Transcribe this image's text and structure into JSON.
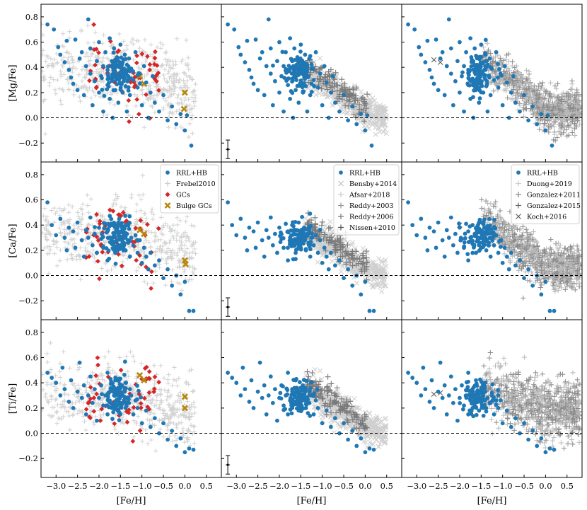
{
  "chart_data": {
    "type": "scatter",
    "layout": "3x3 grid of panels; rows share y-axis quantity, columns share x-axis",
    "xlabel": "[Fe/H]",
    "rows": [
      {
        "ylabel": "[Mg/Fe]",
        "ylim": [
          -0.35,
          0.9
        ],
        "yticks": [
          "0.8",
          "0.6",
          "0.4",
          "0.2",
          "0.0",
          "−0.2"
        ],
        "ytick_values": [
          0.8,
          0.6,
          0.4,
          0.2,
          0.0,
          -0.2
        ]
      },
      {
        "ylabel": "[Ca/Fe]",
        "ylim": [
          -0.35,
          0.9
        ],
        "yticks": [
          "0.8",
          "0.6",
          "0.4",
          "0.2",
          "0.0",
          "−0.2"
        ],
        "ytick_values": [
          0.8,
          0.6,
          0.4,
          0.2,
          0.0,
          -0.2
        ]
      },
      {
        "ylabel": "[Ti/Fe]",
        "ylim": [
          -0.35,
          0.9
        ],
        "yticks": [
          "0.8",
          "0.6",
          "0.4",
          "0.2",
          "0.0",
          "−0.2"
        ],
        "ytick_values": [
          0.8,
          0.6,
          0.4,
          0.2,
          0.0,
          -0.2
        ]
      }
    ],
    "xlim": [
      -3.35,
      0.85
    ],
    "xticks": [
      "−3.0",
      "−2.5",
      "−2.0",
      "−1.5",
      "−1.0",
      "−0.5",
      "0.0",
      "0.5"
    ],
    "xtick_values": [
      -3.0,
      -2.5,
      -2.0,
      -1.5,
      -1.0,
      -0.5,
      0.0,
      0.5
    ],
    "reference_line": {
      "y": 0.0,
      "style": "dashed"
    },
    "error_bar_example": {
      "x": -3.2,
      "y": -0.25,
      "yerr": 0.04,
      "xerr": 0.05,
      "panels": "middle column"
    },
    "legends": [
      {
        "column": 0,
        "placement": "upper right of middle row",
        "entries": [
          {
            "label": "RRL+HB",
            "marker": "circle",
            "color": "#1f77b4"
          },
          {
            "label": "Frebel2010",
            "marker": "plus",
            "color": "#cccccc"
          },
          {
            "label": "GCs",
            "marker": "diamond",
            "color": "#d62728"
          },
          {
            "label": "Bulge GCs",
            "marker": "x",
            "color": "#b8860b"
          }
        ]
      },
      {
        "column": 1,
        "placement": "upper right of middle row",
        "entries": [
          {
            "label": "RRL+HB",
            "marker": "circle",
            "color": "#1f77b4"
          },
          {
            "label": "Bensby+2014",
            "marker": "x",
            "color": "#bbbbbb"
          },
          {
            "label": "Afsar+2018",
            "marker": "plus",
            "color": "#cccccc"
          },
          {
            "label": "Reddy+2003",
            "marker": "plus",
            "color": "#999999"
          },
          {
            "label": "Reddy+2006",
            "marker": "plus",
            "color": "#777777"
          },
          {
            "label": "Nissen+2010",
            "marker": "plus",
            "color": "#555555"
          }
        ]
      },
      {
        "column": 2,
        "placement": "upper right of middle row",
        "entries": [
          {
            "label": "RRL+HB",
            "marker": "circle",
            "color": "#1f77b4"
          },
          {
            "label": "Duong+2019",
            "marker": "plus",
            "color": "#cccccc"
          },
          {
            "label": "Gonzalez+2011",
            "marker": "plus",
            "color": "#888888"
          },
          {
            "label": "Gonzalez+2015",
            "marker": "plus",
            "color": "#666666"
          },
          {
            "label": "Koch+2016",
            "marker": "x",
            "color": "#555555"
          }
        ]
      }
    ],
    "series_points": {
      "rrl_hb": {
        "color": "#1f77b4",
        "mg": [
          [
            -3.2,
            0.74
          ],
          [
            -3.05,
            0.7
          ],
          [
            -2.95,
            0.56
          ],
          [
            -2.9,
            0.5
          ],
          [
            -2.8,
            0.44
          ],
          [
            -2.75,
            0.61
          ],
          [
            -2.7,
            0.38
          ],
          [
            -2.65,
            0.32
          ],
          [
            -2.6,
            0.27
          ],
          [
            -2.55,
            0.62
          ],
          [
            -2.5,
            0.22
          ],
          [
            -2.45,
            0.47
          ],
          [
            -2.4,
            0.52
          ],
          [
            -2.35,
            0.18
          ],
          [
            -2.3,
            0.41
          ],
          [
            -2.25,
            0.78
          ],
          [
            -2.2,
            0.55
          ],
          [
            -2.2,
            0.35
          ],
          [
            -2.15,
            0.1
          ],
          [
            -2.1,
            0.29
          ],
          [
            -2.05,
            0.45
          ],
          [
            -2.0,
            0.6
          ],
          [
            -2.0,
            0.2
          ],
          [
            -1.95,
            0.33
          ],
          [
            -1.9,
            0.41
          ],
          [
            -1.9,
            0.05
          ],
          [
            -1.85,
            0.52
          ],
          [
            -1.8,
            0.26
          ],
          [
            -1.8,
            0.38
          ],
          [
            -1.75,
            0.63
          ],
          [
            -1.75,
            0.15
          ],
          [
            -1.7,
            0.45
          ],
          [
            -1.7,
            0.31
          ],
          [
            -1.68,
            0.0
          ],
          [
            -1.65,
            0.36
          ],
          [
            -1.65,
            0.55
          ],
          [
            -1.62,
            0.22
          ],
          [
            -1.6,
            0.42
          ],
          [
            -1.6,
            0.3
          ],
          [
            -1.58,
            0.48
          ],
          [
            -1.55,
            0.34
          ],
          [
            -1.55,
            0.12
          ],
          [
            -1.52,
            0.4
          ],
          [
            -1.5,
            0.58
          ],
          [
            -1.5,
            0.27
          ],
          [
            -1.48,
            0.36
          ],
          [
            -1.45,
            0.44
          ],
          [
            -1.45,
            0.2
          ],
          [
            -1.42,
            0.32
          ],
          [
            -1.4,
            0.5
          ],
          [
            -1.4,
            0.38
          ],
          [
            -1.38,
            0.25
          ],
          [
            -1.35,
            0.42
          ],
          [
            -1.35,
            0.05
          ],
          [
            -1.32,
            0.33
          ],
          [
            -1.3,
            0.47
          ],
          [
            -1.28,
            0.18
          ],
          [
            -1.25,
            0.39
          ],
          [
            -1.2,
            0.3
          ],
          [
            -1.15,
            0.52
          ],
          [
            -1.1,
            0.24
          ],
          [
            -1.05,
            0.35
          ],
          [
            -1.0,
            0.1
          ],
          [
            -0.95,
            0.41
          ],
          [
            -0.9,
            0.28
          ],
          [
            -0.85,
            0.0
          ],
          [
            -0.8,
            0.2
          ],
          [
            -0.75,
            0.33
          ],
          [
            -0.7,
            0.12
          ],
          [
            -0.6,
            0.05
          ],
          [
            -0.5,
            0.18
          ],
          [
            -0.4,
            -0.02
          ],
          [
            -0.3,
            0.09
          ],
          [
            -0.2,
            -0.05
          ],
          [
            -0.1,
            0.03
          ],
          [
            0.0,
            -0.1
          ],
          [
            0.05,
            0.02
          ],
          [
            0.15,
            -0.22
          ]
        ],
        "ca": [
          [
            -3.2,
            0.58
          ],
          [
            -3.1,
            0.4
          ],
          [
            -3.0,
            0.32
          ],
          [
            -2.9,
            0.45
          ],
          [
            -2.8,
            0.3
          ],
          [
            -2.75,
            0.2
          ],
          [
            -2.7,
            0.38
          ],
          [
            -2.6,
            0.35
          ],
          [
            -2.55,
            0.22
          ],
          [
            -2.5,
            0.42
          ],
          [
            -2.4,
            0.28
          ],
          [
            -2.35,
            0.15
          ],
          [
            -2.3,
            0.36
          ],
          [
            -2.25,
            0.3
          ],
          [
            -2.2,
            0.46
          ],
          [
            -2.15,
            0.24
          ],
          [
            -2.1,
            0.33
          ],
          [
            -2.05,
            0.18
          ],
          [
            -2.0,
            0.38
          ],
          [
            -1.95,
            0.29
          ],
          [
            -1.9,
            0.22
          ],
          [
            -1.85,
            0.41
          ],
          [
            -1.8,
            0.35
          ],
          [
            -1.8,
            0.12
          ],
          [
            -1.75,
            0.3
          ],
          [
            -1.7,
            0.4
          ],
          [
            -1.7,
            0.25
          ],
          [
            -1.65,
            0.33
          ],
          [
            -1.62,
            0.18
          ],
          [
            -1.6,
            0.36
          ],
          [
            -1.58,
            0.28
          ],
          [
            -1.55,
            0.42
          ],
          [
            -1.52,
            0.3
          ],
          [
            -1.5,
            0.22
          ],
          [
            -1.48,
            0.35
          ],
          [
            -1.45,
            0.27
          ],
          [
            -1.42,
            0.38
          ],
          [
            -1.4,
            0.3
          ],
          [
            -1.38,
            0.2
          ],
          [
            -1.35,
            0.33
          ],
          [
            -1.32,
            0.26
          ],
          [
            -1.3,
            0.37
          ],
          [
            -1.28,
            0.15
          ],
          [
            -1.25,
            0.3
          ],
          [
            -1.2,
            0.24
          ],
          [
            -1.15,
            0.32
          ],
          [
            -1.1,
            0.18
          ],
          [
            -1.05,
            0.28
          ],
          [
            -1.0,
            0.1
          ],
          [
            -0.95,
            0.22
          ],
          [
            -0.9,
            0.15
          ],
          [
            -0.85,
            0.05
          ],
          [
            -0.8,
            0.18
          ],
          [
            -0.7,
            0.08
          ],
          [
            -0.6,
            0.12
          ],
          [
            -0.5,
            -0.02
          ],
          [
            -0.4,
            0.05
          ],
          [
            -0.3,
            -0.08
          ],
          [
            -0.2,
            0.0
          ],
          [
            -0.1,
            -0.15
          ],
          [
            0.0,
            -0.05
          ],
          [
            0.1,
            -0.28
          ],
          [
            0.2,
            -0.28
          ]
        ],
        "ti": [
          [
            -3.2,
            0.48
          ],
          [
            -3.1,
            0.44
          ],
          [
            -3.0,
            0.4
          ],
          [
            -2.9,
            0.3
          ],
          [
            -2.85,
            0.52
          ],
          [
            -2.8,
            0.35
          ],
          [
            -2.7,
            0.25
          ],
          [
            -2.65,
            0.42
          ],
          [
            -2.6,
            0.2
          ],
          [
            -2.5,
            0.33
          ],
          [
            -2.45,
            0.56
          ],
          [
            -2.4,
            0.28
          ],
          [
            -2.35,
            0.38
          ],
          [
            -2.3,
            0.15
          ],
          [
            -2.25,
            0.3
          ],
          [
            -2.2,
            0.45
          ],
          [
            -2.15,
            0.24
          ],
          [
            -2.1,
            0.35
          ],
          [
            -2.05,
            0.1
          ],
          [
            -2.0,
            0.28
          ],
          [
            -1.95,
            0.38
          ],
          [
            -1.9,
            0.22
          ],
          [
            -1.85,
            0.3
          ],
          [
            -1.8,
            0.48
          ],
          [
            -1.8,
            0.15
          ],
          [
            -1.75,
            0.26
          ],
          [
            -1.7,
            0.35
          ],
          [
            -1.7,
            0.2
          ],
          [
            -1.65,
            0.3
          ],
          [
            -1.62,
            0.42
          ],
          [
            -1.6,
            0.25
          ],
          [
            -1.58,
            0.32
          ],
          [
            -1.55,
            0.18
          ],
          [
            -1.52,
            0.28
          ],
          [
            -1.5,
            0.36
          ],
          [
            -1.48,
            0.22
          ],
          [
            -1.45,
            0.3
          ],
          [
            -1.42,
            0.26
          ],
          [
            -1.4,
            0.33
          ],
          [
            -1.38,
            0.2
          ],
          [
            -1.35,
            0.28
          ],
          [
            -1.3,
            0.24
          ],
          [
            -1.25,
            0.3
          ],
          [
            -1.2,
            0.15
          ],
          [
            -1.15,
            0.26
          ],
          [
            -1.1,
            0.2
          ],
          [
            -1.0,
            0.08
          ],
          [
            -0.9,
            0.18
          ],
          [
            -0.8,
            0.05
          ],
          [
            -0.7,
            0.12
          ],
          [
            -0.6,
            0.0
          ],
          [
            -0.5,
            0.08
          ],
          [
            -0.4,
            -0.05
          ],
          [
            -0.3,
            0.02
          ],
          [
            -0.2,
            -0.1
          ],
          [
            -0.1,
            -0.04
          ],
          [
            0.0,
            -0.15
          ],
          [
            0.1,
            -0.12
          ],
          [
            0.2,
            -0.13
          ]
        ]
      }
    }
  }
}
